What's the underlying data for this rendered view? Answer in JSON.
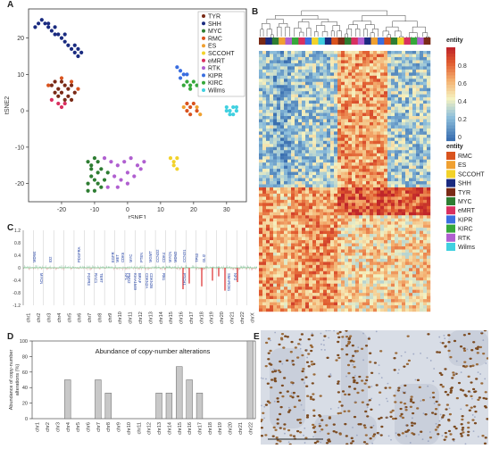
{
  "panels": {
    "a": "A",
    "b": "B",
    "c": "C",
    "d": "D",
    "e": "E"
  },
  "colors": {
    "TYR": "#7a2a16",
    "SHH": "#1a2b80",
    "MYC": "#2e7d32",
    "RMC": "#d9531e",
    "ES": "#f0a030",
    "SCCOHT": "#f2d22a",
    "eMRT": "#d93060",
    "RTK": "#b05fd0",
    "KIPR": "#3a6ee0",
    "KIRC": "#35a83a",
    "Wilms": "#40d0e0"
  },
  "chart_data": [
    {
      "id": "A",
      "type": "scatter",
      "xlabel": "tSNE1",
      "ylabel": "tSNE2",
      "xticks": [
        -20,
        -10,
        0,
        10,
        20,
        30
      ],
      "yticks": [
        -20,
        -10,
        0,
        10,
        20
      ],
      "xlim": [
        -30,
        36
      ],
      "ylim": [
        -25,
        28
      ],
      "legend": [
        "TYR",
        "SHH",
        "MYC",
        "RMC",
        "ES",
        "SCCOHT",
        "eMRT",
        "RTK",
        "KIPR",
        "KIRC",
        "Wilms"
      ],
      "legend_position": "top-right",
      "clusters": [
        {
          "name": "SHH",
          "points": [
            [
              -28,
              23
            ],
            [
              -27,
              24
            ],
            [
              -26,
              25
            ],
            [
              -25,
              24
            ],
            [
              -24,
              23
            ],
            [
              -23,
              22
            ],
            [
              -22,
              23
            ],
            [
              -21,
              21
            ],
            [
              -20,
              20
            ],
            [
              -19,
              19
            ],
            [
              -18,
              18
            ],
            [
              -17,
              17
            ],
            [
              -16,
              18
            ],
            [
              -15,
              17
            ],
            [
              -14,
              16
            ],
            [
              -15,
              15
            ],
            [
              -16,
              16
            ],
            [
              -22,
              21
            ],
            [
              -24,
              24
            ],
            [
              -19,
              21
            ]
          ]
        },
        {
          "name": "TYR",
          "points": [
            [
              -23,
              7
            ],
            [
              -22,
              8
            ],
            [
              -21,
              6
            ],
            [
              -20,
              8
            ],
            [
              -19,
              7
            ],
            [
              -18,
              6
            ],
            [
              -17,
              7
            ],
            [
              -16,
              5
            ],
            [
              -21,
              4
            ],
            [
              -19,
              3
            ],
            [
              -17,
              3
            ],
            [
              -20,
              5
            ],
            [
              -22,
              5
            ],
            [
              -18,
              4
            ]
          ]
        },
        {
          "name": "eMRT",
          "points": [
            [
              -23,
              3
            ],
            [
              -21,
              2
            ],
            [
              -19,
              2
            ],
            [
              -20,
              1
            ]
          ]
        },
        {
          "name": "RMC",
          "points": [
            [
              -24,
              7
            ],
            [
              -17,
              8
            ],
            [
              -20,
              9
            ],
            [
              -15,
              6
            ],
            [
              18,
              2
            ],
            [
              19,
              1
            ],
            [
              20,
              2
            ],
            [
              21,
              0
            ],
            [
              19,
              -1
            ],
            [
              18,
              0
            ]
          ]
        },
        {
          "name": "MYC",
          "points": [
            [
              -12,
              -14
            ],
            [
              -11,
              -15
            ],
            [
              -10,
              -13
            ],
            [
              -9,
              -14
            ],
            [
              -8,
              -16
            ],
            [
              -11,
              -18
            ],
            [
              -10,
              -19
            ],
            [
              -9,
              -20
            ],
            [
              -8,
              -21
            ],
            [
              -12,
              -20
            ],
            [
              -10,
              -22
            ],
            [
              -7,
              -19
            ],
            [
              -6,
              -17
            ],
            [
              -11,
              -16
            ],
            [
              -9,
              -17
            ],
            [
              -12,
              -22
            ]
          ]
        },
        {
          "name": "RTK",
          "points": [
            [
              -7,
              -13
            ],
            [
              -5,
              -14
            ],
            [
              -3,
              -15
            ],
            [
              -1,
              -14
            ],
            [
              1,
              -13
            ],
            [
              3,
              -15
            ],
            [
              5,
              -14
            ],
            [
              -4,
              -18
            ],
            [
              -2,
              -19
            ],
            [
              0,
              -17
            ],
            [
              2,
              -18
            ],
            [
              4,
              -16
            ],
            [
              -6,
              -21
            ],
            [
              -3,
              -21
            ],
            [
              0,
              -20
            ]
          ]
        },
        {
          "name": "SCCOHT",
          "points": [
            [
              13,
              -13
            ],
            [
              14,
              -14
            ],
            [
              15,
              -13
            ],
            [
              14,
              -15
            ],
            [
              15,
              -16
            ]
          ]
        },
        {
          "name": "KIPR",
          "points": [
            [
              15,
              12
            ],
            [
              16,
              11
            ],
            [
              17,
              10
            ],
            [
              16,
              9
            ],
            [
              18,
              10
            ]
          ]
        },
        {
          "name": "KIRC",
          "points": [
            [
              17,
              7
            ],
            [
              18,
              8
            ],
            [
              19,
              7
            ],
            [
              20,
              8
            ],
            [
              21,
              7
            ],
            [
              19,
              6
            ]
          ]
        },
        {
          "name": "ES",
          "points": [
            [
              17,
              1
            ],
            [
              21,
              1
            ],
            [
              22,
              -1
            ]
          ]
        },
        {
          "name": "Wilms",
          "points": [
            [
              30,
              1
            ],
            [
              31,
              0
            ],
            [
              32,
              1
            ],
            [
              33,
              0
            ],
            [
              31,
              -1
            ],
            [
              32,
              -1
            ],
            [
              30,
              0
            ],
            [
              33,
              1
            ]
          ]
        }
      ]
    },
    {
      "id": "B",
      "type": "heatmap",
      "scale_title": "entity",
      "scale_ticks": [
        "0.8",
        "0.6",
        "0.4",
        "0.2",
        "0"
      ],
      "entity_title": "entity",
      "entities": [
        "RMC",
        "ES",
        "SCCOHT",
        "SHH",
        "TYR",
        "MYC",
        "eMRT",
        "KIPR",
        "KIRC",
        "RTK",
        "Wilms"
      ]
    },
    {
      "id": "C",
      "type": "line",
      "yticks": [
        "1.2",
        "0.8",
        "0.4",
        "0",
        "-0.4",
        "-0.8",
        "-1.2"
      ],
      "chromosomes": [
        "chr1",
        "chr2",
        "chr3",
        "chr4",
        "chr5",
        "chr6",
        "chr7",
        "chr8",
        "chr9",
        "chr10",
        "chr11",
        "chr12",
        "chr13",
        "chr14",
        "chr15",
        "chr16",
        "chr17",
        "chr18",
        "chr19",
        "chr20",
        "chr21",
        "chr22",
        "chrX"
      ],
      "gene_labels_up": [
        "MDM4",
        "ID2",
        "PDGFRA",
        "EGFR",
        "MET",
        "CDK6",
        "MYC",
        "PTEN",
        "MGMT",
        "CCND2",
        "CDK4",
        "MYCN",
        "MDM2",
        "CCND1",
        "TP53",
        "GLI2"
      ],
      "gene_labels_down": [
        "MYCN",
        "FGFR3",
        "RAC1",
        "TERT",
        "NF1",
        "PMS2",
        "KIAA1549",
        "BRAF",
        "CDKN2A",
        "CDKN2B",
        "RB1",
        "PTCH1",
        "SMARCB1",
        "NF2"
      ]
    },
    {
      "id": "D",
      "type": "bar",
      "title": "Abundance of copy-number alterations",
      "ylabel": "Abundance of copy-number alterations (%)",
      "ylim": [
        0,
        100
      ],
      "yticks": [
        0,
        20,
        40,
        60,
        80,
        100
      ],
      "categories": [
        "chr1",
        "chr2",
        "chr3",
        "chr4",
        "chr5",
        "chr6",
        "chr7",
        "chr8",
        "chr9",
        "chr10",
        "chr11",
        "chr12",
        "chr13",
        "chr14",
        "chr15",
        "chr16",
        "chr17",
        "chr18",
        "chr19",
        "chr20",
        "chr21",
        "chr22"
      ],
      "values": [
        0,
        0,
        0,
        50,
        0,
        0,
        50,
        33,
        0,
        0,
        0,
        0,
        33,
        33,
        67,
        50,
        33,
        0,
        0,
        0,
        0,
        100
      ]
    }
  ]
}
